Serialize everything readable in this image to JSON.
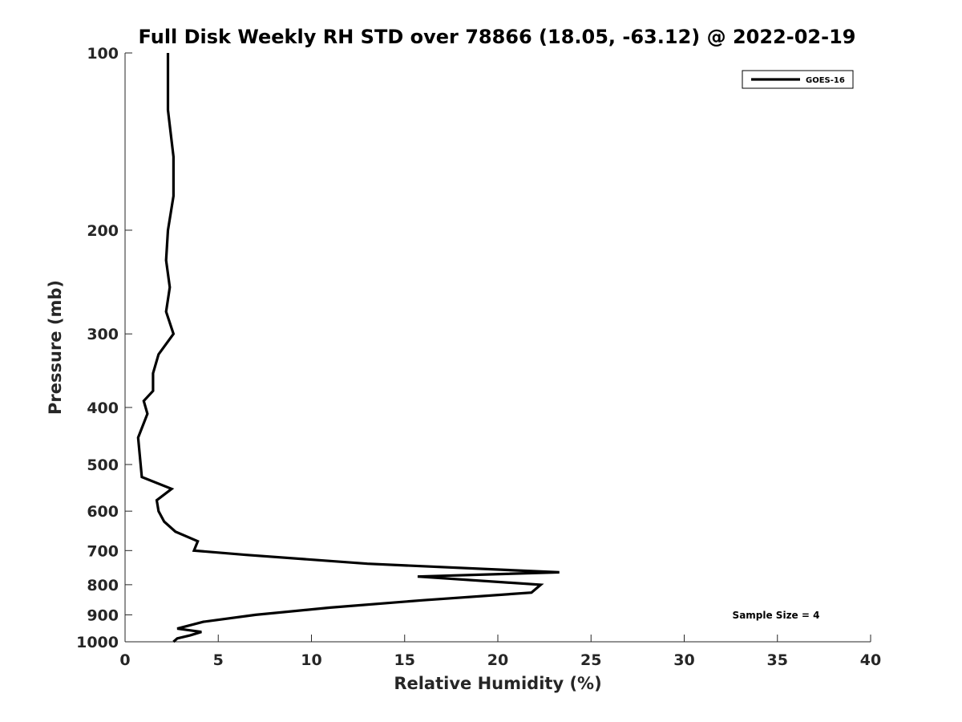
{
  "chart_data": {
    "type": "line",
    "title": "Full Disk Weekly RH STD over 78866 (18.05, -63.12) @ 2022-02-19",
    "xlabel": "Relative Humidity (%)",
    "ylabel": "Pressure (mb)",
    "xlim": [
      0,
      40
    ],
    "ylim": [
      100,
      1000
    ],
    "y_scale": "log",
    "y_reversed": true,
    "x_ticks": [
      "0",
      "5",
      "10",
      "15",
      "20",
      "25",
      "30",
      "35",
      "40"
    ],
    "y_ticks": [
      "100",
      "200",
      "300",
      "400",
      "500",
      "600",
      "700",
      "800",
      "900",
      "1000"
    ],
    "grid": false,
    "legend_position": "top-right",
    "annotation": "Sample Size = 4",
    "series": [
      {
        "name": "GOES-16",
        "color": "#000000",
        "points": [
          {
            "x": 2.3,
            "y": 100
          },
          {
            "x": 2.3,
            "y": 125
          },
          {
            "x": 2.6,
            "y": 150
          },
          {
            "x": 2.6,
            "y": 175
          },
          {
            "x": 2.3,
            "y": 200
          },
          {
            "x": 2.2,
            "y": 225
          },
          {
            "x": 2.4,
            "y": 250
          },
          {
            "x": 2.2,
            "y": 275
          },
          {
            "x": 2.6,
            "y": 300
          },
          {
            "x": 1.8,
            "y": 325
          },
          {
            "x": 1.5,
            "y": 350
          },
          {
            "x": 1.5,
            "y": 375
          },
          {
            "x": 1.0,
            "y": 390
          },
          {
            "x": 1.2,
            "y": 410
          },
          {
            "x": 0.7,
            "y": 450
          },
          {
            "x": 0.9,
            "y": 525
          },
          {
            "x": 2.5,
            "y": 550
          },
          {
            "x": 1.7,
            "y": 575
          },
          {
            "x": 1.8,
            "y": 600
          },
          {
            "x": 2.1,
            "y": 625
          },
          {
            "x": 2.7,
            "y": 650
          },
          {
            "x": 3.9,
            "y": 675
          },
          {
            "x": 3.7,
            "y": 700
          },
          {
            "x": 6.5,
            "y": 712
          },
          {
            "x": 13.0,
            "y": 737
          },
          {
            "x": 23.3,
            "y": 762
          },
          {
            "x": 15.7,
            "y": 775
          },
          {
            "x": 22.3,
            "y": 800
          },
          {
            "x": 21.8,
            "y": 825
          },
          {
            "x": 16.0,
            "y": 850
          },
          {
            "x": 11.0,
            "y": 875
          },
          {
            "x": 7.0,
            "y": 900
          },
          {
            "x": 4.2,
            "y": 925
          },
          {
            "x": 2.8,
            "y": 950
          },
          {
            "x": 4.1,
            "y": 962
          },
          {
            "x": 3.5,
            "y": 975
          },
          {
            "x": 2.8,
            "y": 987
          },
          {
            "x": 2.6,
            "y": 1000
          }
        ]
      }
    ]
  }
}
